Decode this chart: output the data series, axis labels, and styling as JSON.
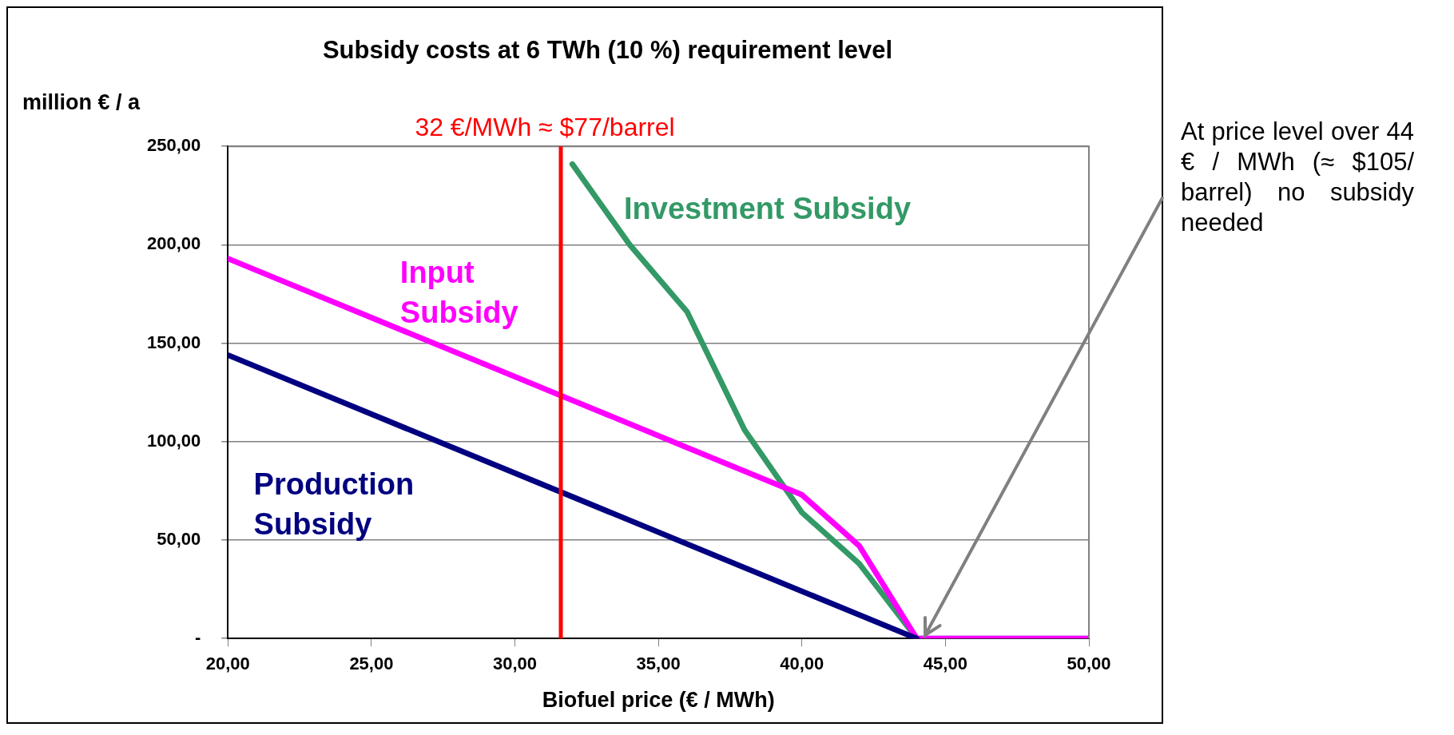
{
  "chart_data": {
    "type": "line",
    "title": "Subsidy costs at 6 TWh (10 %) requirement level",
    "xlabel": "Biofuel price (€ / MWh)",
    "ylabel": "million € / a",
    "xlim": [
      20,
      50
    ],
    "xticks": [
      {
        "value": 20,
        "label": "20,00"
      },
      {
        "value": 25,
        "label": "25,00"
      },
      {
        "value": 30,
        "label": "30,00"
      },
      {
        "value": 35,
        "label": "35,00"
      },
      {
        "value": 40,
        "label": "40,00"
      },
      {
        "value": 45,
        "label": "45,00"
      },
      {
        "value": 50,
        "label": "50,00"
      }
    ],
    "ylim": [
      0,
      250
    ],
    "yticks": [
      {
        "value": 0,
        "label": "-"
      },
      {
        "value": 50,
        "label": "50,00"
      },
      {
        "value": 100,
        "label": "100,00"
      },
      {
        "value": 150,
        "label": "150,00"
      },
      {
        "value": 200,
        "label": "200,00"
      },
      {
        "value": 250,
        "label": "250,00"
      }
    ],
    "grid": "y",
    "legend": false,
    "marker": "none",
    "line_style": "solid",
    "series": [
      {
        "name": "Production Subsidy",
        "color": "#000080",
        "x": [
          20,
          44
        ],
        "values": [
          144,
          0
        ]
      },
      {
        "name": "Input Subsidy",
        "color": "#ff00ff",
        "x": [
          20,
          36,
          38,
          40,
          42,
          44,
          50
        ],
        "values": [
          193,
          97,
          85,
          73,
          47,
          0,
          0
        ]
      },
      {
        "name": "Investment Subsidy",
        "color": "#339966",
        "x": [
          32,
          34,
          36,
          38,
          40,
          42,
          44,
          50
        ],
        "values": [
          241,
          200,
          166,
          106,
          64,
          38,
          0,
          0
        ]
      }
    ],
    "ref_lines": [
      {
        "axis": "x",
        "value": 31.6,
        "label": "32 €/MWh ≈ $77/barrel",
        "color": "#ff0000",
        "line_style": "solid"
      }
    ],
    "annotations": [
      {
        "text": "At price level over 44 € / MWh (≈ $105/ barrel) no subsidy needed",
        "x": 44.3,
        "y": 0
      }
    ]
  }
}
